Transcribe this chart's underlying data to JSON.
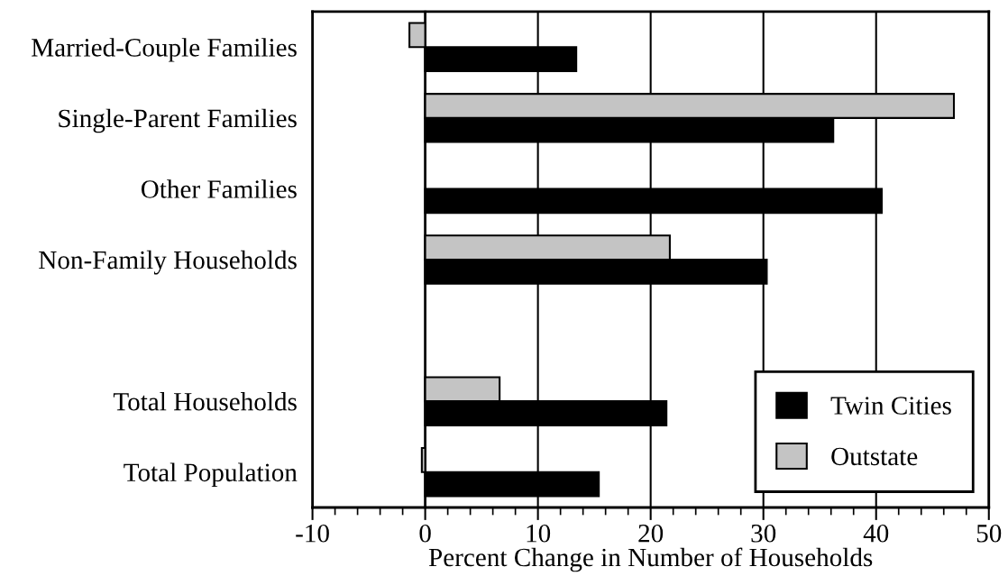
{
  "chart_data": {
    "type": "bar",
    "orientation": "horizontal",
    "categories": [
      "Married-Couple Families",
      "Single-Parent Families",
      "Other Families",
      "Non-Family Households",
      null,
      "Total Households",
      "Total Population"
    ],
    "series": [
      {
        "name": "Twin Cities",
        "color": "#000000",
        "values": [
          13.4,
          36.2,
          40.5,
          30.3,
          null,
          21.4,
          15.4
        ]
      },
      {
        "name": "Outstate",
        "color": "#c4c4c4",
        "values": [
          -1.4,
          46.9,
          null,
          21.7,
          null,
          6.6,
          -0.3
        ]
      }
    ],
    "xlabel": "Percent Change in Number of Households",
    "xlim": [
      -10,
      50
    ],
    "xticks": [
      -10,
      {
        "value": -8,
        "label": null
      },
      {
        "value": -6,
        "label": null
      },
      {
        "value": -4,
        "label": null
      },
      {
        "value": -2,
        "label": null
      },
      0,
      {
        "value": 2,
        "label": null
      },
      {
        "value": 4,
        "label": null
      },
      {
        "value": 6,
        "label": null
      },
      {
        "value": 8,
        "label": null
      },
      10,
      {
        "value": 12,
        "label": null
      },
      {
        "value": 14,
        "label": null
      },
      {
        "value": 16,
        "label": null
      },
      {
        "value": 18,
        "label": null
      },
      20,
      {
        "value": 22,
        "label": null
      },
      {
        "value": 24,
        "label": null
      },
      {
        "value": 26,
        "label": null
      },
      {
        "value": 28,
        "label": null
      },
      30,
      {
        "value": 32,
        "label": null
      },
      {
        "value": 34,
        "label": null
      },
      {
        "value": 36,
        "label": null
      },
      {
        "value": 38,
        "label": null
      },
      40,
      {
        "value": 42,
        "label": null
      },
      {
        "value": 44,
        "label": null
      },
      {
        "value": 46,
        "label": null
      },
      {
        "value": 48,
        "label": null
      },
      50
    ],
    "grid": "x",
    "legend": "bottom right"
  }
}
